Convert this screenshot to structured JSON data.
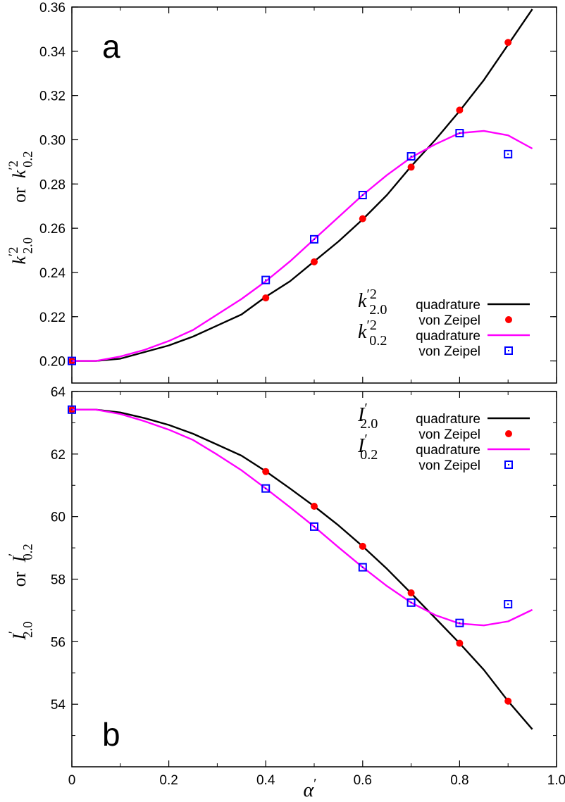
{
  "chart_data": [
    {
      "type": "line",
      "panel_label": "a",
      "ylabel": {
        "left_sym": "k",
        "left_sup": "′2",
        "left_sub": "2.0",
        "or": "or",
        "right_sym": "k",
        "right_sup": "′2",
        "right_sub": "0.2"
      },
      "xlim": [
        0,
        1.0
      ],
      "ylim": [
        0.19,
        0.36
      ],
      "yticks": [
        "0.20",
        "0.22",
        "0.24",
        "0.26",
        "0.28",
        "0.30",
        "0.32",
        "0.34",
        "0.36"
      ],
      "ytick_values": [
        0.2,
        0.22,
        0.24,
        0.26,
        0.28,
        0.3,
        0.32,
        0.34,
        0.36
      ],
      "legend_position": "bottom-right",
      "series": [
        {
          "label_sym": "k",
          "label_sup": "′2",
          "label_sub": "2.0",
          "method": "quadrature",
          "style": "line",
          "color": "#000000",
          "x": [
            0,
            0.05,
            0.1,
            0.15,
            0.2,
            0.25,
            0.3,
            0.35,
            0.4,
            0.45,
            0.5,
            0.55,
            0.6,
            0.65,
            0.7,
            0.75,
            0.8,
            0.85,
            0.9,
            0.95
          ],
          "y": [
            0.2,
            0.2,
            0.201,
            0.204,
            0.207,
            0.211,
            0.216,
            0.221,
            0.229,
            0.236,
            0.245,
            0.254,
            0.264,
            0.275,
            0.288,
            0.3,
            0.313,
            0.327,
            0.343,
            0.359
          ]
        },
        {
          "label_sym": "",
          "label_sup": "",
          "label_sub": "",
          "method": "von Zeipel",
          "style": "dot",
          "color": "#ff0000",
          "x": [
            0,
            0.4,
            0.5,
            0.6,
            0.7,
            0.8,
            0.9
          ],
          "y": [
            0.2,
            0.2285,
            0.2448,
            0.2643,
            0.2876,
            0.3134,
            0.344
          ]
        },
        {
          "label_sym": "k",
          "label_sup": "′2",
          "label_sub": "0.2",
          "method": "quadrature",
          "style": "line",
          "color": "#ff00ff",
          "x": [
            0,
            0.05,
            0.1,
            0.15,
            0.2,
            0.25,
            0.3,
            0.35,
            0.4,
            0.45,
            0.5,
            0.55,
            0.6,
            0.65,
            0.7,
            0.75,
            0.8,
            0.85,
            0.9,
            0.95
          ],
          "y": [
            0.2,
            0.2,
            0.202,
            0.205,
            0.209,
            0.214,
            0.221,
            0.228,
            0.236,
            0.245,
            0.255,
            0.265,
            0.275,
            0.284,
            0.292,
            0.298,
            0.303,
            0.304,
            0.302,
            0.296
          ]
        },
        {
          "label_sym": "",
          "label_sup": "",
          "label_sub": "",
          "method": "von Zeipel",
          "style": "square",
          "color": "#0000ff",
          "x": [
            0,
            0.4,
            0.5,
            0.6,
            0.7,
            0.8,
            0.9
          ],
          "y": [
            0.2,
            0.2366,
            0.255,
            0.275,
            0.2925,
            0.303,
            0.2935
          ]
        }
      ]
    },
    {
      "type": "line",
      "panel_label": "b",
      "ylabel": {
        "left_sym": "I",
        "left_sup": "′",
        "left_sub": "2.0",
        "or": "or",
        "right_sym": "I",
        "right_sup": "′",
        "right_sub": "0.2"
      },
      "xlabel_sym": "α",
      "xlabel_sup": "′",
      "xlim": [
        0,
        1.0
      ],
      "ylim": [
        52.0,
        64.0
      ],
      "xticks": [
        "0",
        "0.2",
        "0.4",
        "0.6",
        "0.8",
        "1.0"
      ],
      "xtick_values": [
        0,
        0.2,
        0.4,
        0.6,
        0.8,
        1.0
      ],
      "yticks": [
        "54",
        "56",
        "58",
        "60",
        "62",
        "64"
      ],
      "ytick_values": [
        54,
        56,
        58,
        60,
        62,
        64
      ],
      "legend_position": "top-right",
      "series": [
        {
          "label_sym": "I",
          "label_sup": "′",
          "label_sub": "2.0",
          "method": "quadrature",
          "style": "line",
          "color": "#000000",
          "x": [
            0,
            0.05,
            0.1,
            0.15,
            0.2,
            0.25,
            0.3,
            0.35,
            0.4,
            0.45,
            0.5,
            0.55,
            0.6,
            0.65,
            0.7,
            0.75,
            0.8,
            0.85,
            0.9,
            0.95
          ],
          "y": [
            63.42,
            63.42,
            63.33,
            63.15,
            62.93,
            62.65,
            62.3,
            61.95,
            61.45,
            60.9,
            60.33,
            59.72,
            59.05,
            58.33,
            57.55,
            56.75,
            55.95,
            55.1,
            54.1,
            53.2
          ]
        },
        {
          "label_sym": "",
          "label_sup": "",
          "label_sub": "",
          "method": "von Zeipel",
          "style": "dot",
          "color": "#ff0000",
          "x": [
            0,
            0.4,
            0.5,
            0.6,
            0.7,
            0.8,
            0.9
          ],
          "y": [
            63.42,
            61.44,
            60.33,
            59.05,
            57.56,
            55.95,
            54.1
          ]
        },
        {
          "label_sym": "I",
          "label_sup": "′",
          "label_sub": "0.2",
          "method": "quadrature",
          "style": "line",
          "color": "#ff00ff",
          "x": [
            0,
            0.05,
            0.1,
            0.15,
            0.2,
            0.25,
            0.3,
            0.35,
            0.4,
            0.45,
            0.5,
            0.55,
            0.6,
            0.65,
            0.7,
            0.75,
            0.8,
            0.85,
            0.9,
            0.95
          ],
          "y": [
            63.42,
            63.42,
            63.28,
            63.05,
            62.78,
            62.45,
            61.98,
            61.48,
            60.9,
            60.3,
            59.68,
            59.02,
            58.38,
            57.78,
            57.25,
            56.85,
            56.58,
            56.52,
            56.65,
            57.02
          ]
        },
        {
          "label_sym": "",
          "label_sup": "",
          "label_sub": "",
          "method": "von Zeipel",
          "style": "square",
          "color": "#0000ff",
          "x": [
            0,
            0.4,
            0.5,
            0.6,
            0.7,
            0.8,
            0.9
          ],
          "y": [
            63.42,
            60.9,
            59.68,
            58.38,
            57.25,
            56.6,
            57.2
          ]
        }
      ]
    }
  ]
}
